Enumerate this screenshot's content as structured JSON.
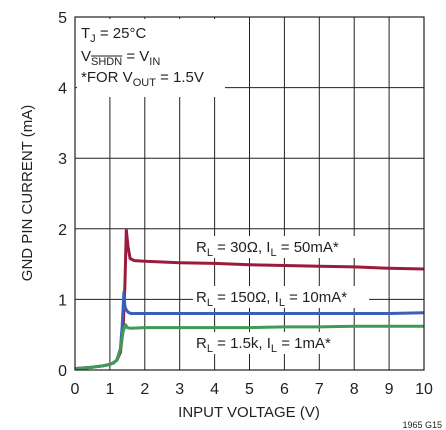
{
  "chart_data": {
    "type": "line",
    "xlabel": "INPUT VOLTAGE (V)",
    "ylabel": "GND PIN CURRENT (mA)",
    "xlim": [
      0,
      10
    ],
    "ylim": [
      0,
      5
    ],
    "xticks": [
      "0",
      "1",
      "2",
      "3",
      "4",
      "5",
      "6",
      "7",
      "8",
      "9",
      "10"
    ],
    "yticks": [
      "0",
      "1",
      "2",
      "3",
      "4",
      "5"
    ],
    "grid": true,
    "conditions": {
      "tj": {
        "main": "T",
        "sub": "J",
        "rest": " = 25°C"
      },
      "vshdn": {
        "v": "V",
        "sub": "SHDN",
        "eq": " = V",
        "sub2": "IN"
      },
      "note": {
        "pre": "*FOR V",
        "sub": "OUT",
        "post": " = 1.5V"
      }
    },
    "series": [
      {
        "label": {
          "r": "R",
          "rsub": "L",
          "rval": " = 30Ω, I",
          "isub": "L",
          "ival": " = 50mA*"
        },
        "color": "#9b1b3c",
        "x": [
          0,
          0.5,
          0.8,
          1.0,
          1.1,
          1.2,
          1.3,
          1.38,
          1.43,
          1.47,
          1.52,
          1.58,
          1.7,
          2,
          3,
          4,
          5,
          6,
          7,
          8,
          9,
          10
        ],
        "y": [
          0.02,
          0.04,
          0.06,
          0.08,
          0.1,
          0.14,
          0.25,
          0.6,
          1.2,
          1.98,
          1.75,
          1.58,
          1.55,
          1.54,
          1.52,
          1.51,
          1.49,
          1.48,
          1.47,
          1.46,
          1.44,
          1.43
        ]
      },
      {
        "label": {
          "r": "R",
          "rsub": "L",
          "rval": " = 150Ω, I",
          "isub": "L",
          "ival": " = 10mA*"
        },
        "color": "#3a5fb8",
        "x": [
          0,
          0.5,
          0.8,
          1.0,
          1.1,
          1.2,
          1.3,
          1.35,
          1.4,
          1.43,
          1.47,
          1.52,
          1.6,
          2,
          3,
          4,
          5,
          6,
          7,
          8,
          9,
          10
        ],
        "y": [
          0.02,
          0.04,
          0.06,
          0.08,
          0.1,
          0.14,
          0.3,
          0.6,
          1.1,
          0.9,
          0.85,
          0.82,
          0.8,
          0.8,
          0.8,
          0.8,
          0.8,
          0.8,
          0.8,
          0.8,
          0.8,
          0.81
        ]
      },
      {
        "label": {
          "r": "R",
          "rsub": "L",
          "rval": " = 1.5k, I",
          "isub": "L",
          "ival": " = 1mA*"
        },
        "color": "#3f9a55",
        "x": [
          0,
          0.5,
          0.8,
          1.0,
          1.1,
          1.2,
          1.3,
          1.38,
          1.45,
          1.5,
          1.6,
          2,
          3,
          4,
          5,
          6,
          7,
          8,
          9,
          10
        ],
        "y": [
          0.02,
          0.04,
          0.06,
          0.08,
          0.1,
          0.14,
          0.3,
          0.55,
          0.64,
          0.6,
          0.59,
          0.6,
          0.6,
          0.6,
          0.6,
          0.61,
          0.61,
          0.62,
          0.62,
          0.62
        ]
      }
    ],
    "figure_id": "1965 G15"
  }
}
